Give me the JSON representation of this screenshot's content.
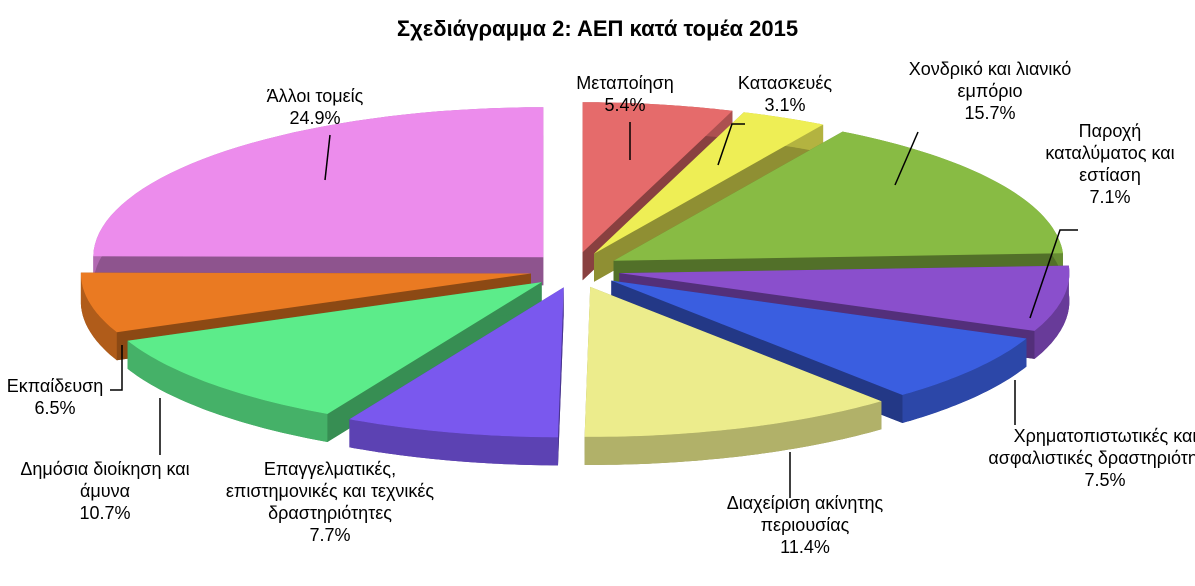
{
  "chart_data": {
    "type": "pie3d",
    "title": "Σχεδιάγραμμα 2: ΑΕΠ κατά τομέα 2015",
    "categories": [
      "Μεταποίηση",
      "Κατασκευές",
      "Χονδρικό και λιανικό εμπόριο",
      "Παροχή καταλύματος και εστίαση",
      "Χρηματοπιστωτικές και ασφαλιστικές δραστηριότητες",
      "Διαχείριση ακίνητης περιουσίας",
      "Επαγγελματικές, επιστημονικές και τεχνικές δραστηριότητες",
      "Δημόσια διοίκηση και άμυνα",
      "Εκπαίδευση",
      "Άλλοι τομείς"
    ],
    "values": [
      5.4,
      3.1,
      15.7,
      7.1,
      7.5,
      11.4,
      7.7,
      10.7,
      6.5,
      24.9
    ],
    "value_labels": [
      "5.4%",
      "3.1%",
      "15.7%",
      "7.1%",
      "7.5%",
      "11.4%",
      "7.7%",
      "10.7%",
      "6.5%",
      "24.9%"
    ],
    "colors": [
      "#e56b6b",
      "#eeee55",
      "#88bb44",
      "#8a4fcc",
      "#3a5ee0",
      "#ecec8c",
      "#7a58ee",
      "#5cec8a",
      "#ea7a22",
      "#ec8cec"
    ]
  }
}
